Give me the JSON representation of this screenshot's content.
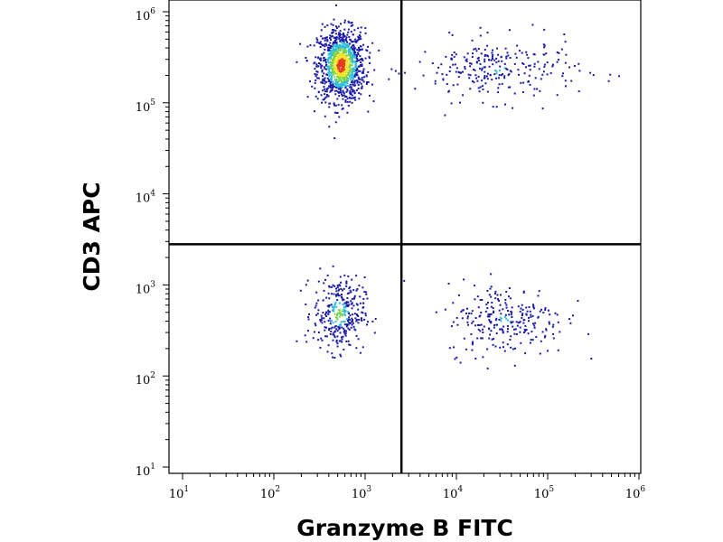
{
  "chart_data": {
    "type": "scatter",
    "title": "",
    "xlabel": "Granzyme B FITC",
    "ylabel": "CD3 APC",
    "x_scale": "log",
    "y_scale": "log",
    "xlim": [
      10,
      1000000
    ],
    "ylim": [
      10,
      1000000
    ],
    "x_ticks": [
      {
        "value": 10,
        "base": "10",
        "exp": "1"
      },
      {
        "value": 100,
        "base": "10",
        "exp": "2"
      },
      {
        "value": 1000,
        "base": "10",
        "exp": "3"
      },
      {
        "value": 10000,
        "base": "10",
        "exp": "4"
      },
      {
        "value": 100000,
        "base": "10",
        "exp": "5"
      },
      {
        "value": 1000000,
        "base": "10",
        "exp": "6"
      }
    ],
    "y_ticks": [
      {
        "value": 10,
        "base": "10",
        "exp": "1"
      },
      {
        "value": 100,
        "base": "10",
        "exp": "2"
      },
      {
        "value": 1000,
        "base": "10",
        "exp": "3"
      },
      {
        "value": 10000,
        "base": "10",
        "exp": "4"
      },
      {
        "value": 100000,
        "base": "10",
        "exp": "5"
      },
      {
        "value": 1000000,
        "base": "10",
        "exp": "6"
      }
    ],
    "grid": false,
    "legend": "none",
    "density_colors": [
      "#1a1aa6",
      "#2fbfd9",
      "#7bd34a",
      "#f2e52a",
      "#e53b1f"
    ],
    "quadrant_gates": {
      "x": 2500,
      "y": 2800
    },
    "populations": [
      {
        "quadrant": "upper-left",
        "center": [
          550,
          260000
        ],
        "spread_x_decades": 0.13,
        "spread_y_decades": 0.2,
        "approx_events": 1100
      },
      {
        "quadrant": "upper-right",
        "center": [
          28000,
          230000
        ],
        "spread_x_decades": 0.45,
        "spread_y_decades": 0.17,
        "approx_events": 260
      },
      {
        "quadrant": "lower-left",
        "center": [
          520,
          480
        ],
        "spread_x_decades": 0.14,
        "spread_y_decades": 0.2,
        "approx_events": 330
      },
      {
        "quadrant": "lower-right",
        "center": [
          35000,
          420
        ],
        "spread_x_decades": 0.33,
        "spread_y_decades": 0.2,
        "approx_events": 260
      }
    ]
  }
}
